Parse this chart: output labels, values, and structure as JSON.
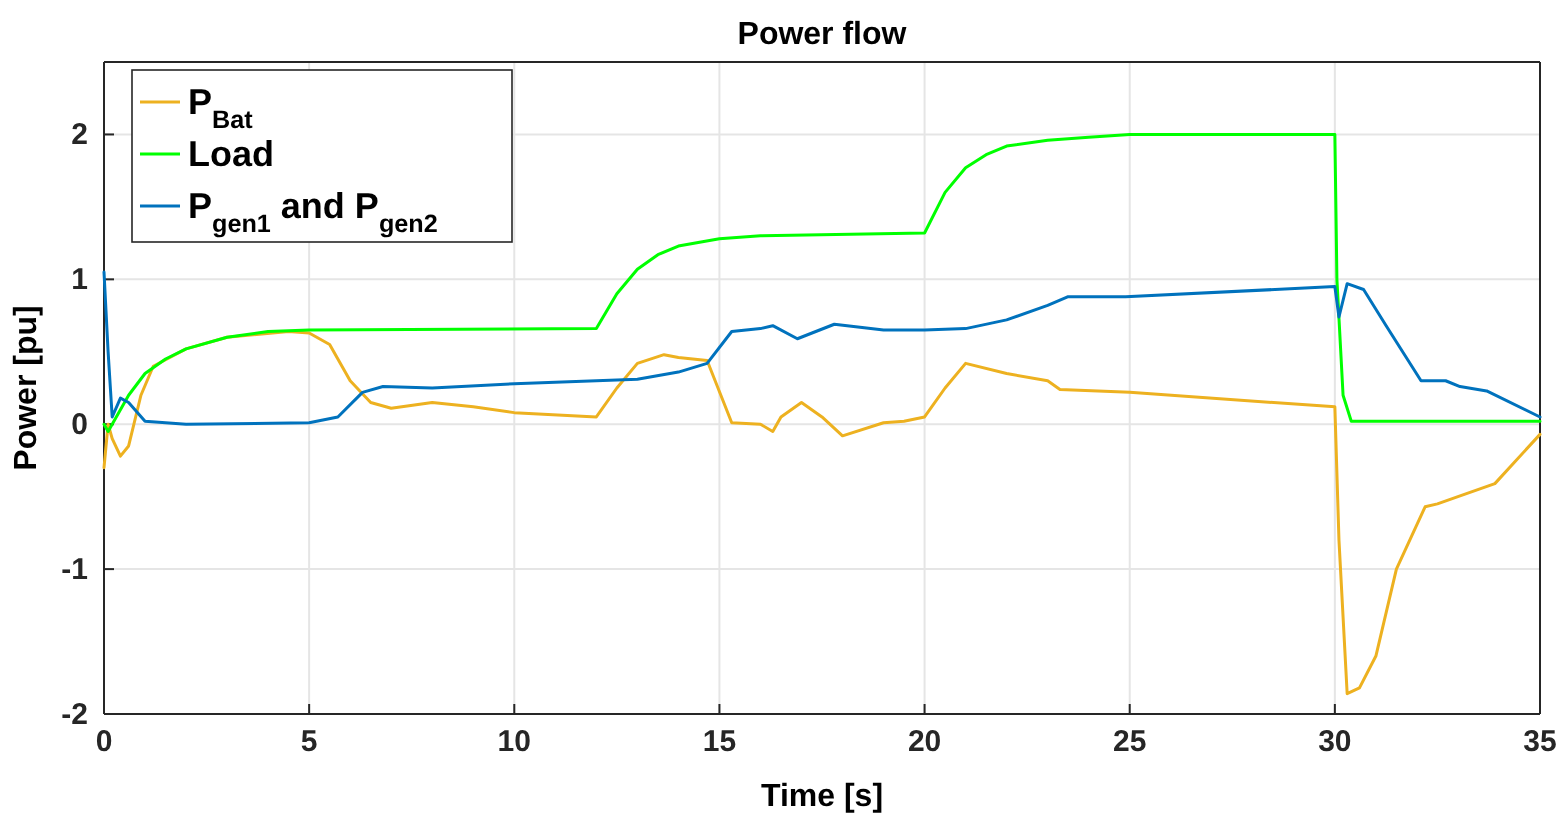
{
  "chart_data": {
    "type": "line",
    "title": "Power flow",
    "xlabel": "Time [s]",
    "ylabel": "Power [pu]",
    "xlim": [
      0,
      35
    ],
    "ylim": [
      -2,
      2.5
    ],
    "xticks": [
      0,
      5,
      10,
      15,
      20,
      25,
      30,
      35
    ],
    "yticks": [
      -2,
      -1,
      0,
      1,
      2
    ],
    "grid": true,
    "legend": "top left",
    "line_style": "solid",
    "marker": "none",
    "series": [
      {
        "name": "P$_{Bat}$",
        "color": "#edb120",
        "x": [
          0,
          0.1,
          0.2,
          0.4,
          0.6,
          0.9,
          1.2,
          2,
          3,
          4.5,
          5,
          5.5,
          6,
          6.5,
          7,
          8,
          9,
          10,
          12,
          12.5,
          13,
          13.65,
          14,
          14.7,
          15.3,
          16,
          16.3,
          16.5,
          17,
          17.5,
          18,
          19,
          19.5,
          20,
          20.5,
          21,
          22,
          23,
          23.3,
          25,
          30,
          30.1,
          30.3,
          30.6,
          31,
          31.5,
          32.2,
          32.5,
          33,
          33.9,
          35
        ],
        "values": [
          -0.3,
          0,
          -0.1,
          -0.22,
          -0.15,
          0.2,
          0.4,
          0.52,
          0.6,
          0.64,
          0.63,
          0.55,
          0.3,
          0.15,
          0.11,
          0.15,
          0.12,
          0.08,
          0.05,
          0.25,
          0.42,
          0.48,
          0.46,
          0.44,
          0.01,
          0,
          -0.05,
          0.05,
          0.15,
          0.05,
          -0.08,
          0.01,
          0.02,
          0.05,
          0.25,
          0.42,
          0.35,
          0.3,
          0.24,
          0.22,
          0.12,
          -0.8,
          -1.86,
          -1.82,
          -1.6,
          -1.0,
          -0.57,
          -0.55,
          -0.5,
          -0.41,
          -0.07
        ]
      },
      {
        "name": "Load",
        "color": "#00ff00",
        "x": [
          0,
          0.1,
          0.3,
          0.6,
          1,
          1.5,
          2,
          3,
          4,
          5,
          12,
          12.5,
          13,
          13.5,
          14,
          15,
          16,
          20,
          20.5,
          21,
          21.5,
          22,
          23,
          24,
          25,
          30,
          30.05,
          30.2,
          30.4,
          35
        ],
        "values": [
          0,
          -0.05,
          0.05,
          0.2,
          0.35,
          0.45,
          0.52,
          0.6,
          0.64,
          0.65,
          0.66,
          0.9,
          1.07,
          1.17,
          1.23,
          1.28,
          1.3,
          1.32,
          1.6,
          1.77,
          1.86,
          1.92,
          1.96,
          1.98,
          2.0,
          2.0,
          1.0,
          0.2,
          0.02,
          0.02
        ]
      },
      {
        "name": "P$_{gen1}$ and P$_{gen2}$",
        "color": "#0072bd",
        "x": [
          0,
          0.1,
          0.2,
          0.4,
          0.6,
          1,
          2,
          5,
          5.7,
          6.3,
          6.8,
          8,
          10,
          12,
          13,
          14,
          14.7,
          15.3,
          16,
          16.3,
          16.9,
          17.8,
          19,
          20,
          21,
          22,
          23,
          23.5,
          24.9,
          30,
          30.1,
          30.3,
          30.7,
          31.25,
          32.1,
          32.7,
          33.05,
          33.7,
          35
        ],
        "values": [
          1.05,
          0.5,
          0.05,
          0.18,
          0.15,
          0.02,
          0,
          0.01,
          0.05,
          0.22,
          0.26,
          0.25,
          0.28,
          0.3,
          0.31,
          0.36,
          0.42,
          0.64,
          0.66,
          0.68,
          0.59,
          0.69,
          0.65,
          0.65,
          0.66,
          0.72,
          0.82,
          0.88,
          0.88,
          0.95,
          0.74,
          0.97,
          0.93,
          0.68,
          0.3,
          0.3,
          0.26,
          0.23,
          0.05
        ]
      }
    ]
  }
}
